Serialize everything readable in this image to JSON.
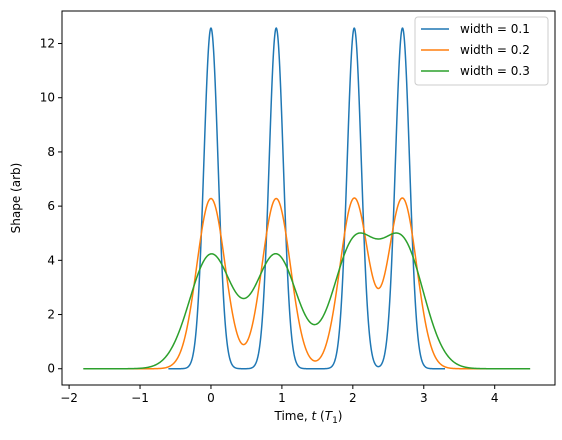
{
  "chart_data": {
    "type": "line",
    "title": "",
    "xlabel_prefix": "Time, ",
    "xlabel_var": "t",
    "xlabel_open": " (",
    "xlabel_T": "T",
    "xlabel_sub": "1",
    "xlabel_close": ")",
    "ylabel": "Shape (arb)",
    "xlim": [
      -2.1,
      4.85
    ],
    "ylim": [
      -0.6,
      13.2
    ],
    "xticks": [
      -2,
      -1,
      0,
      1,
      2,
      3,
      4
    ],
    "yticks": [
      0,
      2,
      4,
      6,
      8,
      10,
      12
    ],
    "legend_position": "top-right",
    "pulse_centers": [
      0,
      0.92,
      2.02,
      2.7
    ],
    "series": [
      {
        "name": "width = 0.1",
        "color": "#1f77b4",
        "width_param": 0.1,
        "x_range": [
          -0.6,
          3.3
        ],
        "peak_values": [
          12.57,
          12.57,
          12.57,
          12.57
        ]
      },
      {
        "name": "width = 0.2",
        "color": "#ff7f0e",
        "width_param": 0.2,
        "x_range": [
          -1.2,
          3.9
        ],
        "peak_values": [
          6.28,
          6.28,
          6.28,
          6.28
        ]
      },
      {
        "name": "width = 0.3",
        "color": "#2ca02c",
        "width_param": 0.3,
        "x_range": [
          -1.8,
          4.5
        ],
        "peak_values": [
          4.2,
          4.2,
          4.55,
          4.55
        ]
      }
    ]
  }
}
